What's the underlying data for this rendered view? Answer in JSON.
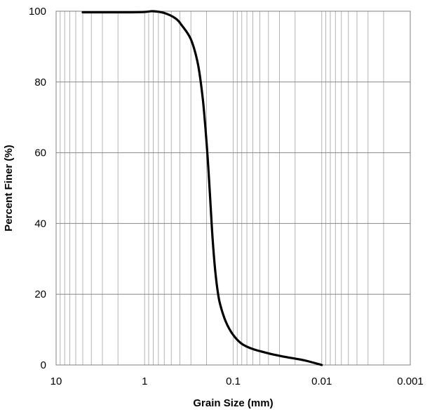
{
  "chart_data": {
    "type": "line",
    "title": "",
    "xlabel": "Grain Size (mm)",
    "ylabel": "Percent Finer (%)",
    "x_scale": "log",
    "x_reversed": true,
    "xlim": [
      10,
      0.001
    ],
    "ylim": [
      0,
      100
    ],
    "x_ticks": [
      10,
      1,
      0.1,
      0.01,
      0.001
    ],
    "x_tick_labels": [
      "10",
      "1",
      "0.1",
      "0.01",
      "0.001"
    ],
    "y_ticks": [
      0,
      20,
      40,
      60,
      80,
      100
    ],
    "y_tick_labels": [
      "0",
      "20",
      "40",
      "60",
      "80",
      "100"
    ],
    "grid": true,
    "legend": "none",
    "series": [
      {
        "color": "#000000",
        "x": [
          5,
          3,
          1.5,
          1,
          0.8,
          0.6,
          0.45,
          0.38,
          0.3,
          0.25,
          0.22,
          0.2,
          0.19,
          0.18,
          0.17,
          0.16,
          0.15,
          0.14,
          0.12,
          0.1,
          0.08,
          0.06,
          0.04,
          0.03,
          0.02,
          0.015,
          0.01
        ],
        "y": [
          99.7,
          99.7,
          99.7,
          99.8,
          100,
          99.5,
          98,
          96,
          92,
          85,
          75,
          63,
          55,
          45,
          35,
          27,
          21,
          17,
          12,
          8.5,
          6,
          4.5,
          3.3,
          2.6,
          1.8,
          1.2,
          0
        ]
      }
    ]
  }
}
